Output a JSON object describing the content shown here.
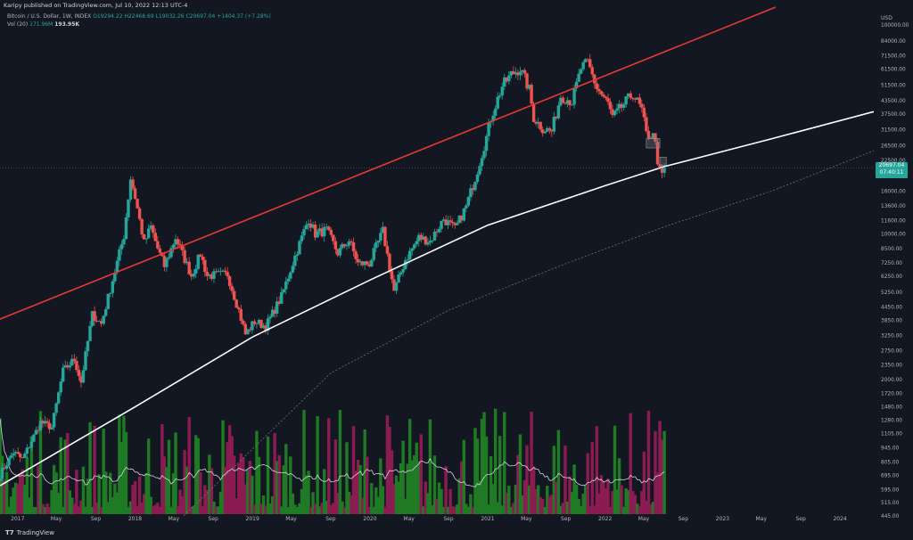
{
  "header": {
    "publisher": "Karipy published on TradingView.com, Jul 10, 2022 12:13 UTC-4",
    "symbol": "Bitcoin / U.S. Dollar, 1W, INDEX",
    "ohlc": {
      "open": "O19294.22",
      "high": "H22468.69",
      "low": "L19032.26",
      "close": "C20697.04",
      "change": "+1404.37 (+7.28%)"
    },
    "vol_label": "Vol (20)",
    "vol_ma": "171.96M",
    "vol_value": "193.95K"
  },
  "price_badge": {
    "price": "20697.04",
    "countdown": "07:40:11"
  },
  "footer": {
    "brand": "TradingView"
  },
  "colors": {
    "background": "#131722",
    "up": "#26a69a",
    "down": "#ef5350",
    "vol_up": "#1f7a24",
    "vol_down": "#8a1c52",
    "upper_channel": "#e53935",
    "mid_channel": "#ffffff",
    "lower_channel": "#787b86"
  },
  "chart_data": {
    "type": "candlestick",
    "title": "Bitcoin / U.S. Dollar, 1W, INDEX",
    "xlabel": "",
    "ylabel": "",
    "y_unit": "USD",
    "y_scale": "log",
    "ylim": [
      440,
      122000
    ],
    "grid": false,
    "y_ticks": [
      "100000.00",
      "84000.00",
      "71500.00",
      "61500.00",
      "51500.00",
      "43500.00",
      "37500.00",
      "31500.00",
      "26500.00",
      "22500.00",
      "19000.00",
      "16000.00",
      "13600.00",
      "11600.00",
      "10000.00",
      "8500.00",
      "7250.00",
      "6250.00",
      "5250.00",
      "4450.00",
      "3850.00",
      "3250.00",
      "2750.00",
      "2350.00",
      "2000.00",
      "1720.00",
      "1480.00",
      "1280.00",
      "1105.00",
      "945.00",
      "805.00",
      "695.00",
      "595.00",
      "515.00",
      "445.00"
    ],
    "x_ticks": [
      {
        "label": "2017",
        "date": "2017-01-01"
      },
      {
        "label": "May",
        "date": "2017-05-01"
      },
      {
        "label": "Sep",
        "date": "2017-09-01"
      },
      {
        "label": "2018",
        "date": "2018-01-01"
      },
      {
        "label": "May",
        "date": "2018-05-01"
      },
      {
        "label": "Sep",
        "date": "2018-09-01"
      },
      {
        "label": "2019",
        "date": "2019-01-01"
      },
      {
        "label": "May",
        "date": "2019-05-01"
      },
      {
        "label": "Sep",
        "date": "2019-09-01"
      },
      {
        "label": "2020",
        "date": "2020-01-01"
      },
      {
        "label": "May",
        "date": "2020-05-01"
      },
      {
        "label": "Sep",
        "date": "2020-09-01"
      },
      {
        "label": "2021",
        "date": "2021-01-01"
      },
      {
        "label": "May",
        "date": "2021-05-01"
      },
      {
        "label": "Sep",
        "date": "2021-09-01"
      },
      {
        "label": "2022",
        "date": "2022-01-01"
      },
      {
        "label": "May",
        "date": "2022-05-01"
      },
      {
        "label": "Sep",
        "date": "2022-09-01"
      },
      {
        "label": "2023",
        "date": "2023-01-01"
      },
      {
        "label": "May",
        "date": "2023-05-01"
      },
      {
        "label": "Sep",
        "date": "2023-09-01"
      },
      {
        "label": "2024",
        "date": "2024-01-01"
      }
    ],
    "xlim": [
      "2016-11-07",
      "2024-04-15"
    ],
    "price_path": [
      {
        "date": "2016-11-07",
        "close": 700
      },
      {
        "date": "2016-12-19",
        "close": 900
      },
      {
        "date": "2017-01-16",
        "close": 830
      },
      {
        "date": "2017-03-13",
        "close": 1250
      },
      {
        "date": "2017-04-17",
        "close": 1180
      },
      {
        "date": "2017-05-22",
        "close": 2200
      },
      {
        "date": "2017-06-26",
        "close": 2500
      },
      {
        "date": "2017-07-17",
        "close": 1950
      },
      {
        "date": "2017-08-21",
        "close": 4100
      },
      {
        "date": "2017-09-18",
        "close": 3700
      },
      {
        "date": "2017-10-23",
        "close": 6000
      },
      {
        "date": "2017-11-27",
        "close": 9800
      },
      {
        "date": "2017-12-18",
        "close": 18500
      },
      {
        "date": "2018-01-01",
        "close": 15000
      },
      {
        "date": "2018-01-29",
        "close": 9000
      },
      {
        "date": "2018-02-19",
        "close": 10800
      },
      {
        "date": "2018-03-12",
        "close": 8500
      },
      {
        "date": "2018-04-02",
        "close": 7000
      },
      {
        "date": "2018-05-07",
        "close": 9600
      },
      {
        "date": "2018-06-25",
        "close": 6300
      },
      {
        "date": "2018-07-23",
        "close": 8000
      },
      {
        "date": "2018-08-13",
        "close": 6300
      },
      {
        "date": "2018-10-15",
        "close": 6400
      },
      {
        "date": "2018-11-19",
        "close": 4300
      },
      {
        "date": "2018-12-10",
        "close": 3300
      },
      {
        "date": "2019-01-07",
        "close": 3800
      },
      {
        "date": "2019-02-11",
        "close": 3600
      },
      {
        "date": "2019-04-01",
        "close": 5000
      },
      {
        "date": "2019-05-13",
        "close": 7800
      },
      {
        "date": "2019-06-24",
        "close": 11800
      },
      {
        "date": "2019-07-15",
        "close": 10000
      },
      {
        "date": "2019-08-19",
        "close": 10400
      },
      {
        "date": "2019-09-23",
        "close": 8100
      },
      {
        "date": "2019-10-28",
        "close": 9300
      },
      {
        "date": "2019-11-25",
        "close": 7200
      },
      {
        "date": "2019-12-30",
        "close": 7200
      },
      {
        "date": "2020-02-10",
        "close": 10300
      },
      {
        "date": "2020-03-16",
        "close": 5300
      },
      {
        "date": "2020-04-20",
        "close": 7500
      },
      {
        "date": "2020-06-01",
        "close": 9600
      },
      {
        "date": "2020-07-06",
        "close": 9200
      },
      {
        "date": "2020-08-17",
        "close": 11800
      },
      {
        "date": "2020-09-21",
        "close": 10500
      },
      {
        "date": "2020-10-26",
        "close": 13500
      },
      {
        "date": "2020-11-23",
        "close": 18500
      },
      {
        "date": "2020-12-28",
        "close": 29000
      },
      {
        "date": "2021-01-11",
        "close": 36000
      },
      {
        "date": "2021-02-15",
        "close": 51000
      },
      {
        "date": "2021-03-15",
        "close": 58000
      },
      {
        "date": "2021-04-12",
        "close": 62000
      },
      {
        "date": "2021-05-10",
        "close": 49000
      },
      {
        "date": "2021-05-24",
        "close": 36000
      },
      {
        "date": "2021-06-21",
        "close": 32000
      },
      {
        "date": "2021-07-19",
        "close": 31000
      },
      {
        "date": "2021-08-16",
        "close": 46000
      },
      {
        "date": "2021-09-20",
        "close": 43000
      },
      {
        "date": "2021-10-18",
        "close": 62000
      },
      {
        "date": "2021-11-08",
        "close": 66000
      },
      {
        "date": "2021-12-06",
        "close": 50000
      },
      {
        "date": "2022-01-10",
        "close": 42000
      },
      {
        "date": "2022-01-24",
        "close": 36000
      },
      {
        "date": "2022-03-28",
        "close": 47000
      },
      {
        "date": "2022-04-25",
        "close": 39000
      },
      {
        "date": "2022-05-09",
        "close": 30000
      },
      {
        "date": "2022-06-06",
        "close": 29000
      },
      {
        "date": "2022-06-13",
        "close": 20500
      },
      {
        "date": "2022-06-27",
        "close": 19300
      },
      {
        "date": "2022-07-04",
        "close": 20697
      }
    ],
    "channel_lines": [
      {
        "name": "upper-channel",
        "points": [
          {
            "date": "2016-11-07",
            "price": 3900
          },
          {
            "date": "2023-06-15",
            "price": 122000
          }
        ]
      },
      {
        "name": "mid-channel",
        "points": [
          {
            "date": "2016-11-07",
            "price": 620
          },
          {
            "date": "2018-01-01",
            "price": 1480
          },
          {
            "date": "2019-01-01",
            "price": 3200
          },
          {
            "date": "2020-01-01",
            "price": 6000
          },
          {
            "date": "2021-01-01",
            "price": 11000
          },
          {
            "date": "2022-01-01",
            "price": 17000
          },
          {
            "date": "2022-07-04",
            "price": 21000
          },
          {
            "date": "2023-06-01",
            "price": 28500
          },
          {
            "date": "2024-04-15",
            "price": 38500
          }
        ]
      },
      {
        "name": "lower-channel",
        "points": [
          {
            "date": "2018-06-01",
            "price": 445
          },
          {
            "date": "2019-09-01",
            "price": 2150
          },
          {
            "date": "2020-09-01",
            "price": 4300
          },
          {
            "date": "2021-09-01",
            "price": 7200
          },
          {
            "date": "2022-07-04",
            "price": 10800
          },
          {
            "date": "2023-06-01",
            "price": 16000
          },
          {
            "date": "2024-04-15",
            "price": 25000
          }
        ]
      }
    ],
    "projection_boxes": [
      {
        "date_start": "2022-05-09",
        "date_end": "2022-06-20",
        "price_low": 25800,
        "price_high": 28600
      },
      {
        "date_start": "2022-06-20",
        "date_end": "2022-07-10",
        "price_low": 21300,
        "price_high": 23300
      }
    ],
    "volume_seed": 7
  }
}
